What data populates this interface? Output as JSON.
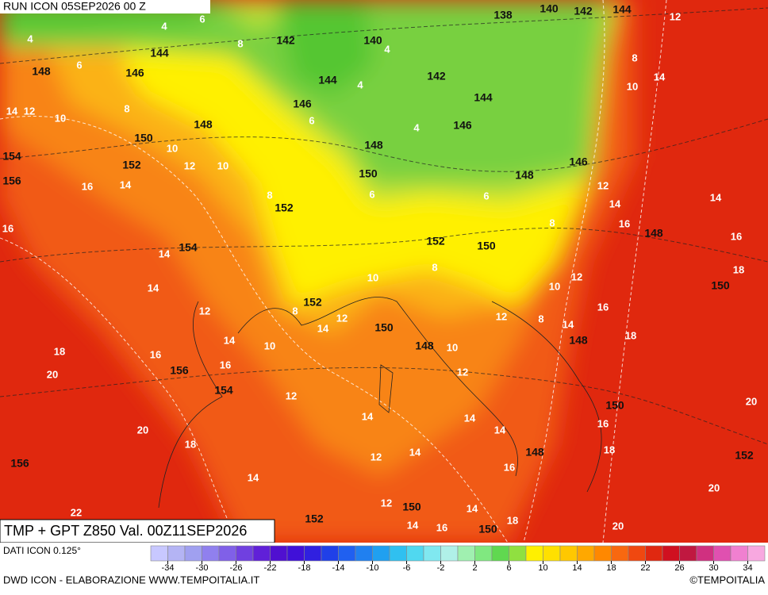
{
  "header": {
    "run": "RUN ICON 05SEP2026 00 Z"
  },
  "map": {
    "geopotential_labels": [
      138,
      140,
      142,
      144,
      142,
      140,
      144,
      146,
      148,
      144,
      142,
      144,
      146,
      146,
      148,
      150,
      148,
      152,
      154,
      156,
      150,
      146,
      148,
      152,
      148,
      154,
      152,
      150,
      150,
      152,
      150,
      148,
      148,
      156,
      154,
      150,
      148,
      152,
      156,
      150,
      150,
      152
    ],
    "temperature_labels": [
      6,
      4,
      4,
      6,
      8,
      4,
      8,
      12,
      14,
      10,
      4,
      4,
      6,
      8,
      14,
      12,
      10,
      10,
      12,
      10,
      16,
      14,
      16,
      8,
      6,
      6,
      12,
      14,
      14,
      16,
      16,
      8,
      14,
      14,
      12,
      18,
      10,
      8,
      12,
      10,
      16,
      8,
      12,
      14,
      12,
      8,
      14,
      18,
      14,
      10,
      10,
      18,
      16,
      16,
      20,
      12,
      12,
      14,
      14,
      16,
      20,
      20,
      18,
      18,
      12,
      14,
      14,
      16,
      14,
      20,
      12,
      14,
      14,
      16,
      18,
      20,
      22
    ]
  },
  "footer": {
    "title": "TMP + GPT Z850 Val. 00Z11SEP2026",
    "source": "DATI ICON 0.125°",
    "credit": "DWD ICON - ELABORAZIONE WWW.TEMPOITALIA.IT",
    "copyright": "©TEMPOITALIA"
  },
  "legend": {
    "lim": [
      -36,
      36
    ],
    "ticks": [
      -34,
      -30,
      -26,
      -22,
      -18,
      -14,
      -10,
      -6,
      -2,
      2,
      6,
      10,
      14,
      18,
      22,
      26,
      30,
      34
    ],
    "colors": [
      "#c8c8ff",
      "#b4b4f4",
      "#a0a0f0",
      "#9080ee",
      "#8060e8",
      "#7040e0",
      "#6020d8",
      "#5010d0",
      "#4010d8",
      "#3020e0",
      "#2040e8",
      "#2060f0",
      "#2080f0",
      "#20a0f0",
      "#30c0f0",
      "#50d8f0",
      "#80e8f0",
      "#b0f0e8",
      "#a0f0b0",
      "#80e880",
      "#60d850",
      "#90e040",
      "#fff000",
      "#ffe000",
      "#ffc800",
      "#ffa800",
      "#ff8800",
      "#f86810",
      "#f04810",
      "#e02810",
      "#d01020",
      "#c01840",
      "#d03080",
      "#e050b0",
      "#f080d0",
      "#f8a8e0"
    ]
  }
}
